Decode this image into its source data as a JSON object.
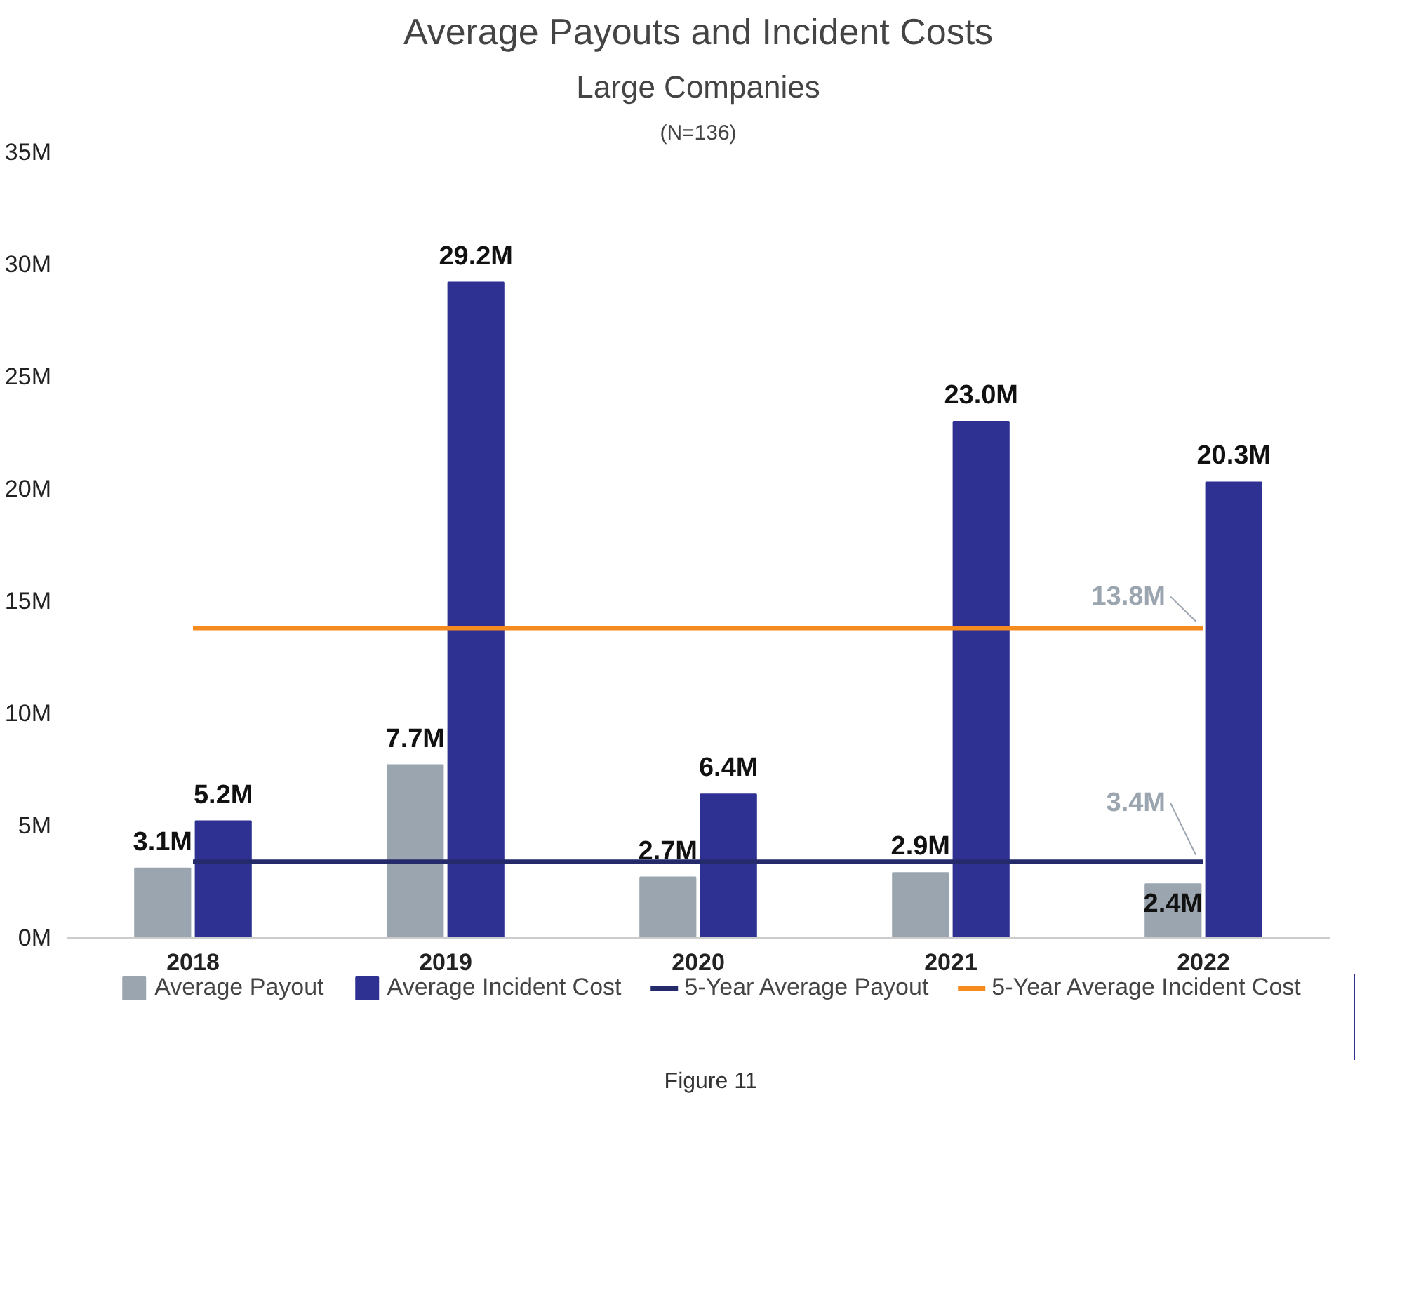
{
  "chart_data": {
    "type": "bar",
    "title": "Average Payouts and Incident Costs",
    "subtitle": "Large Companies",
    "annotations": [
      "(N=136)",
      "Figure 11"
    ],
    "categories": [
      "2018",
      "2019",
      "2020",
      "2021",
      "2022"
    ],
    "series": [
      {
        "name": "Average Payout",
        "color": "#9ba5b0",
        "values": [
          3.1,
          7.7,
          2.7,
          2.9,
          2.4
        ],
        "value_labels": [
          "3.1M",
          "7.7M",
          "2.7M",
          "2.9M",
          "2.4M"
        ]
      },
      {
        "name": "Average Incident Cost",
        "color": "#2e3192",
        "values": [
          5.2,
          29.2,
          6.4,
          23.0,
          20.3
        ],
        "value_labels": [
          "5.2M",
          "29.2M",
          "6.4M",
          "23.0M",
          "20.3M"
        ]
      },
      {
        "name": "5-Year Average Payout",
        "type": "line",
        "color": "#252a6a",
        "values": [
          3.4,
          3.4,
          3.4,
          3.4,
          3.4
        ],
        "value_labels": [
          null,
          null,
          null,
          null,
          "3.4M"
        ]
      },
      {
        "name": "5-Year Average Incident Cost",
        "type": "line",
        "color": "#f58a1f",
        "values": [
          13.8,
          13.8,
          13.8,
          13.8,
          13.8
        ],
        "value_labels": [
          null,
          null,
          null,
          null,
          "13.8M"
        ]
      }
    ],
    "ylim": [
      0,
      35
    ],
    "yticks": [
      {
        "value": 0,
        "label": "0M"
      },
      {
        "value": 5,
        "label": "5M"
      },
      {
        "value": 10,
        "label": "10M"
      },
      {
        "value": 15,
        "label": "15M"
      },
      {
        "value": 20,
        "label": "20M"
      },
      {
        "value": 25,
        "label": "25M"
      },
      {
        "value": 30,
        "label": "30M"
      },
      {
        "value": 35,
        "label": "35M"
      }
    ],
    "grid": false,
    "legend": "bottom",
    "line_style": "solid",
    "marker": "none"
  }
}
